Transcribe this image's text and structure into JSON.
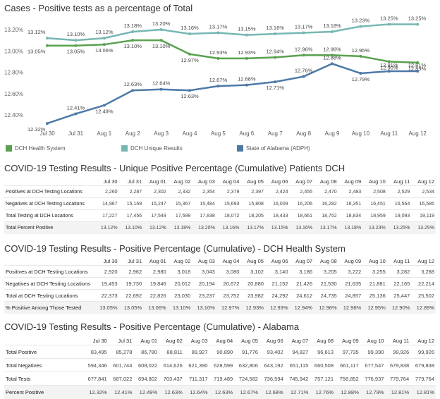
{
  "chart": {
    "title": "Cases - Positive tests as a percentage of Total"
  },
  "chart_data": {
    "type": "line",
    "title": "Cases - Positive tests as a percentage of Total",
    "categories": [
      "Jul 30",
      "Jul 31",
      "Aug 1",
      "Aug 2",
      "Aug 3",
      "Aug 4",
      "Aug 5",
      "Aug 6",
      "Aug 7",
      "Aug 8",
      "Aug 9",
      "Aug 10",
      "Aug 11",
      "Aug 12"
    ],
    "yticks": [
      "13.20%",
      "13.00%",
      "12.80%",
      "12.60%",
      "12.40%"
    ],
    "ylim": [
      12.28,
      13.27
    ],
    "grid": false,
    "legend_position": "bottom",
    "series": [
      {
        "name": "DCH Health System",
        "color": "#59a14f",
        "values": [
          13.05,
          13.05,
          13.06,
          13.1,
          13.1,
          12.97,
          12.93,
          12.93,
          12.94,
          12.96,
          12.96,
          12.95,
          12.9,
          12.89
        ],
        "labels": [
          "13.05%",
          "13.05%",
          "13.06%",
          "13.10%",
          "13.10%",
          "12.97%",
          "12.93%",
          "12.93%",
          "12.94%",
          "12.96%",
          "12.96%",
          "12.95%",
          "12.90%",
          "12.89%"
        ]
      },
      {
        "name": "DCH Unique Results",
        "color": "#76b7b2",
        "values": [
          13.12,
          13.1,
          13.12,
          13.18,
          13.2,
          13.16,
          13.17,
          13.15,
          13.16,
          13.17,
          13.18,
          13.23,
          13.25,
          13.25
        ],
        "labels": [
          "13.12%",
          "13.10%",
          "13.12%",
          "13.18%",
          "13.20%",
          "13.16%",
          "13.17%",
          "13.15%",
          "13.16%",
          "13.17%",
          "13.18%",
          "13.23%",
          "13.25%",
          "13.25%"
        ]
      },
      {
        "name": "State of Alabama (ADPH)",
        "color": "#4e79a7",
        "values": [
          12.32,
          12.41,
          12.49,
          12.63,
          12.64,
          12.63,
          12.67,
          12.68,
          12.71,
          12.76,
          12.88,
          12.79,
          12.81,
          12.81
        ],
        "labels": [
          "12.32%",
          "12.41%",
          "12.49%",
          "12.63%",
          "12.64%",
          "12.63%",
          "12.67%",
          "12.68%",
          "12.71%",
          "12.76%",
          "12.88%",
          "12.79%",
          "12.81%",
          "12.81%"
        ]
      }
    ]
  },
  "legend": [
    {
      "label": "DCH Health System",
      "color": "#59a14f"
    },
    {
      "label": "DCH Unique Results",
      "color": "#76b7b2"
    },
    {
      "label": "State of Alabama (ADPH)",
      "color": "#4e79a7"
    }
  ],
  "tables": [
    {
      "title": "COVID-19 Testing Results - Unique Positive Percentage (Cumulative) Patients DCH",
      "columns": [
        "Jul 30",
        "Jul 31",
        "Aug 01",
        "Aug 02",
        "Aug 03",
        "Aug 04",
        "Aug 05",
        "Aug 06",
        "Aug 07",
        "Aug 08",
        "Aug 09",
        "Aug 10",
        "Aug 11",
        "Aug 12"
      ],
      "rows": [
        {
          "label": "Positives at DCH Testing Locations",
          "values": [
            "2,260",
            "2,287",
            "2,302",
            "2,332",
            "2,354",
            "2,379",
            "2,397",
            "2,424",
            "2,455",
            "2,470",
            "2,483",
            "2,508",
            "2,529",
            "2,534"
          ]
        },
        {
          "label": "Negatives at DCH Testing Locations",
          "values": [
            "14,967",
            "15,169",
            "15,247",
            "15,367",
            "15,484",
            "15,693",
            "15,808",
            "16,009",
            "16,206",
            "16,282",
            "16,351",
            "16,451",
            "16,564",
            "16,585"
          ]
        },
        {
          "label": "Total Testing at DCH Locations",
          "values": [
            "17,227",
            "17,456",
            "17,549",
            "17,699",
            "17,838",
            "18,072",
            "18,205",
            "18,433",
            "18,661",
            "18,752",
            "18,834",
            "18,959",
            "19,093",
            "19,119"
          ]
        },
        {
          "label": "Total Percent Positive",
          "values": [
            "13.12%",
            "13.10%",
            "13.12%",
            "13.18%",
            "13.20%",
            "13.16%",
            "13.17%",
            "13.15%",
            "13.16%",
            "13.17%",
            "13.18%",
            "13.23%",
            "13.25%",
            "13.25%"
          ]
        }
      ]
    },
    {
      "title": "COVID-19 Testing Results - Positive Percentage (Cumulative) - DCH Health System",
      "columns": [
        "Jul 30",
        "Jul 31",
        "Aug 01",
        "Aug 02",
        "Aug 03",
        "Aug 04",
        "Aug 05",
        "Aug 06",
        "Aug 07",
        "Aug 08",
        "Aug 09",
        "Aug 10",
        "Aug 11",
        "Aug 12"
      ],
      "rows": [
        {
          "label": "Positives at DCH Testing Locations",
          "values": [
            "2,920",
            "2,962",
            "2,980",
            "3,018",
            "3,043",
            "3,080",
            "3,102",
            "3,140",
            "3,186",
            "3,205",
            "3,222",
            "3,255",
            "3,282",
            "3,288"
          ]
        },
        {
          "label": "Negatives at DCH Testing Locations",
          "values": [
            "19,453",
            "19,730",
            "19,846",
            "20,012",
            "20,194",
            "20,672",
            "20,880",
            "21,152",
            "21,426",
            "21,530",
            "21,635",
            "21,881",
            "22,165",
            "22,214"
          ]
        },
        {
          "label": "Total at DCH Testing Locations",
          "values": [
            "22,373",
            "22,692",
            "22,826",
            "23,030",
            "23,237",
            "23,752",
            "23,982",
            "24,292",
            "24,612",
            "24,735",
            "24,857",
            "25,136",
            "25,447",
            "25,502"
          ]
        },
        {
          "label": "% Positive Among Those Tested",
          "values": [
            "13.05%",
            "13.05%",
            "13.06%",
            "13.10%",
            "13.10%",
            "12.97%",
            "12.93%",
            "12.93%",
            "12.94%",
            "12.96%",
            "12.96%",
            "12.95%",
            "12.90%",
            "12.89%"
          ]
        }
      ]
    },
    {
      "title": "COVID-19 Testing Results - Positive Percentage (Cumulative) - Alabama",
      "columns": [
        "Jul 30",
        "Jul 31",
        "Aug 01",
        "Aug 02",
        "Aug 03",
        "Aug 04",
        "Aug 05",
        "Aug 06",
        "Aug 07",
        "Aug 08",
        "Aug 09",
        "Aug 10",
        "Aug 11",
        "Aug 12"
      ],
      "rows": [
        {
          "label": "Total Positive",
          "values": [
            "83,495",
            "85,278",
            "86,780",
            "88,811",
            "89,927",
            "90,890",
            "91,776",
            "93,402",
            "94,827",
            "96,613",
            "97,735",
            "99,390",
            "99,926",
            "99,926"
          ]
        },
        {
          "label": "Total Negatives",
          "values": [
            "594,346",
            "601,744",
            "608,022",
            "614,626",
            "621,390",
            "628,599",
            "632,806",
            "643,192",
            "651,115",
            "660,508",
            "661,117",
            "677,547",
            "679,838",
            "679,838"
          ]
        },
        {
          "label": "Total Tests",
          "values": [
            "677,841",
            "687,022",
            "694,802",
            "703,437",
            "711,317",
            "719,489",
            "724,582",
            "736,594",
            "745,942",
            "757,121",
            "758,852",
            "776,937",
            "779,764",
            "779,764"
          ]
        },
        {
          "label": "Percent Positive",
          "values": [
            "12.32%",
            "12.41%",
            "12.49%",
            "12.63%",
            "12.64%",
            "12.63%",
            "12.67%",
            "12.68%",
            "12.71%",
            "12.76%",
            "12.88%",
            "12.79%",
            "12.81%",
            "12.81%"
          ]
        }
      ]
    }
  ]
}
